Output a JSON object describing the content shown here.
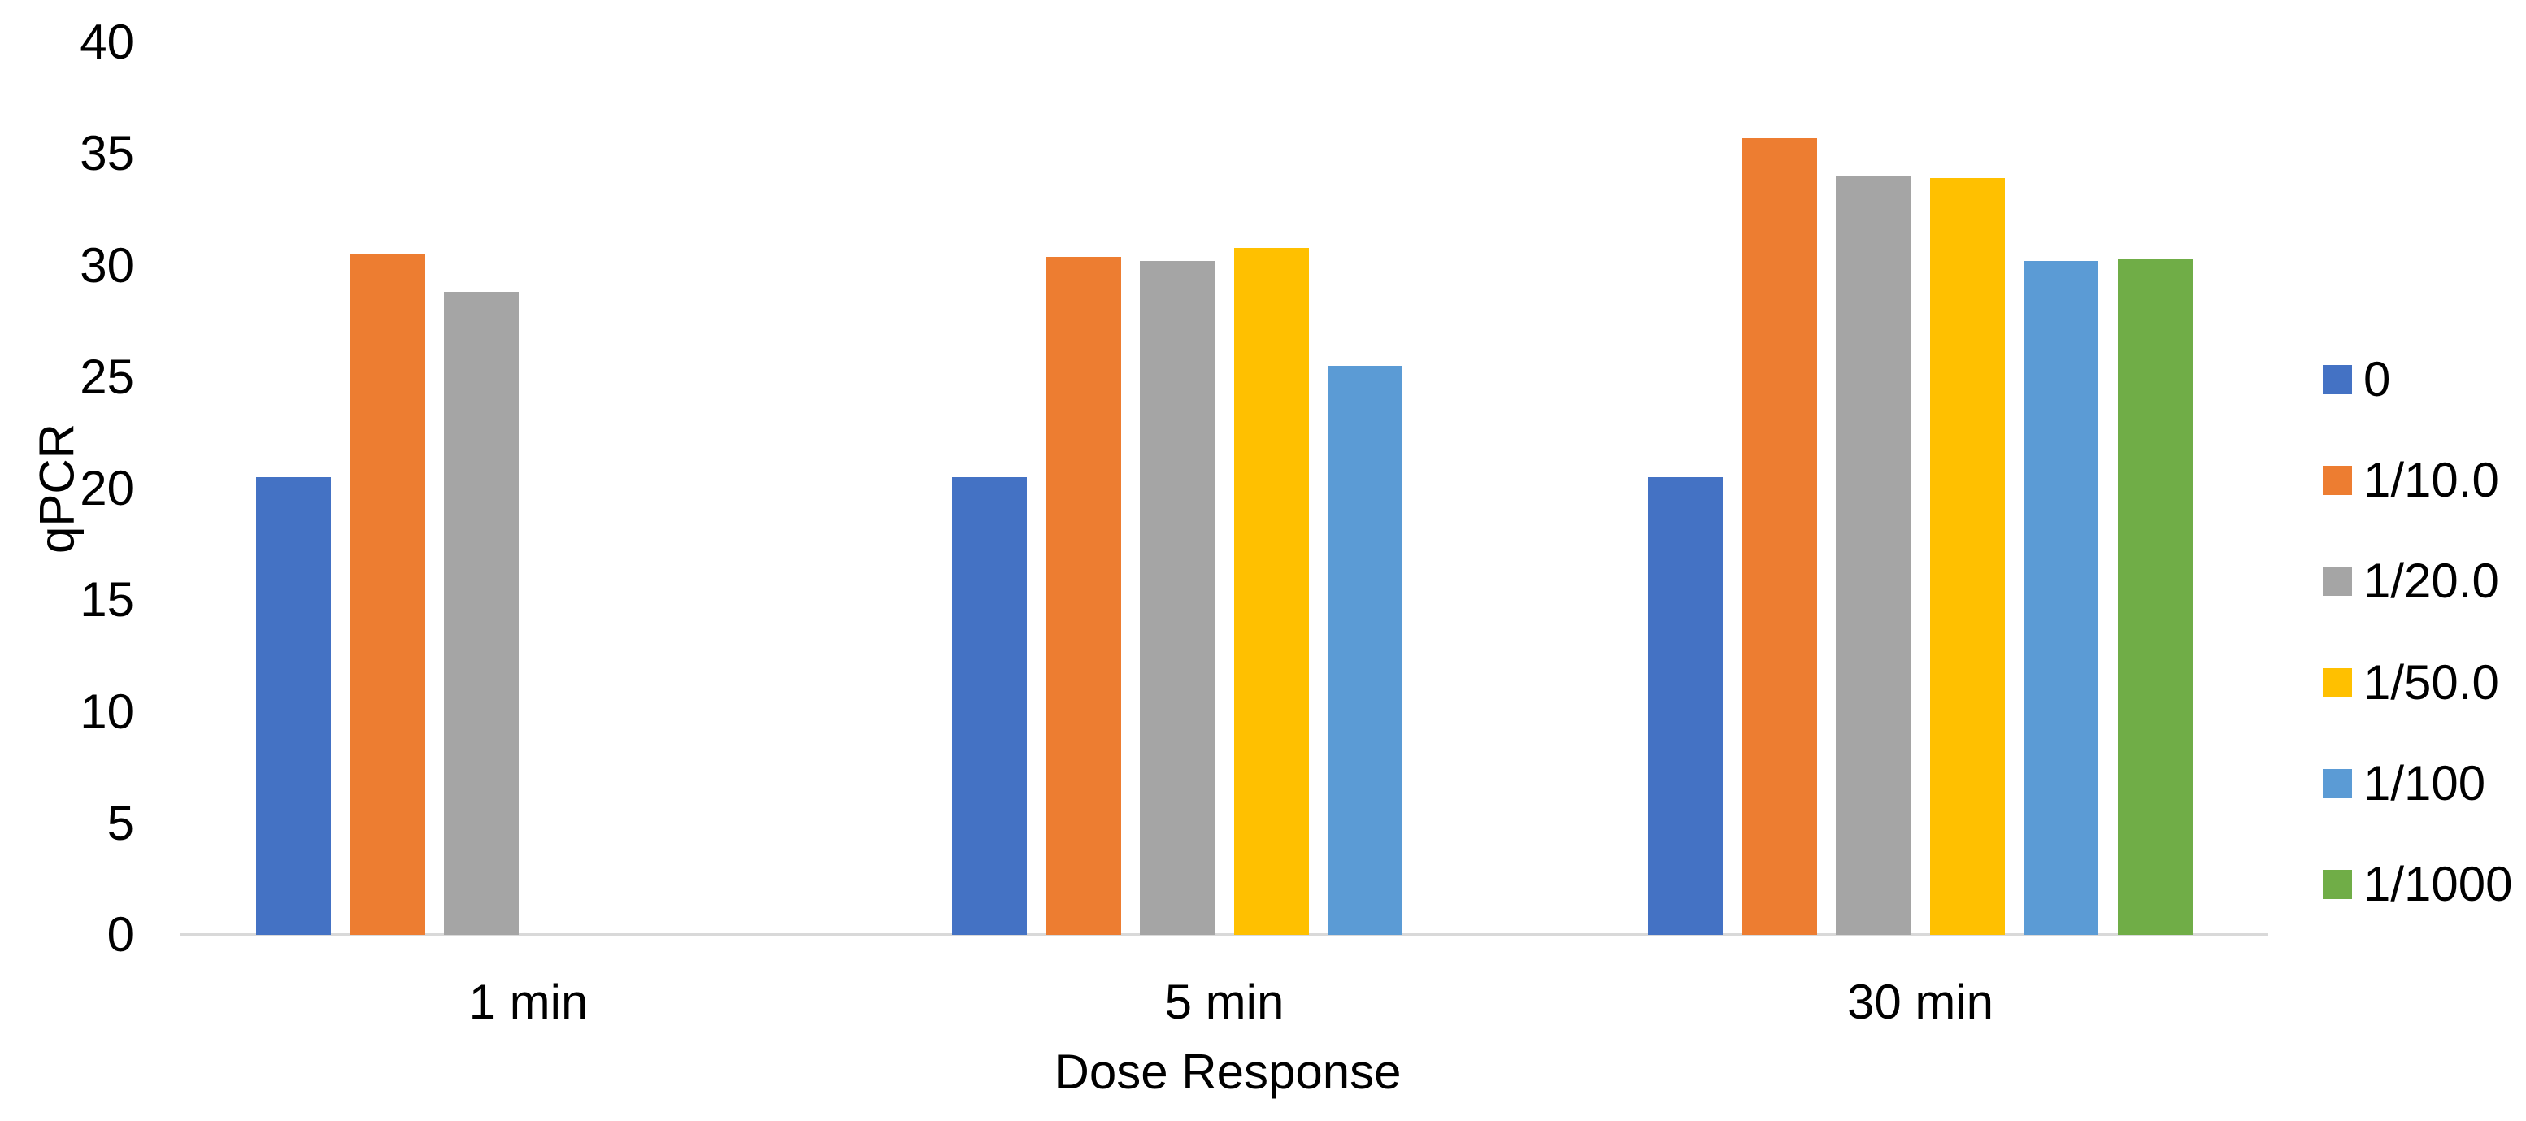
{
  "chart_data": {
    "type": "bar",
    "title": "",
    "xlabel": "Dose Response",
    "ylabel": "qPCR",
    "categories": [
      "1 min",
      "5 min",
      "30 min"
    ],
    "series": [
      {
        "name": "0",
        "color": "#4472C4",
        "values": [
          20.5,
          20.5,
          20.5
        ]
      },
      {
        "name": "1/10.0",
        "color": "#ED7D31",
        "values": [
          30.5,
          30.4,
          35.7
        ]
      },
      {
        "name": "1/20.0",
        "color": "#A5A5A5",
        "values": [
          28.8,
          30.2,
          34.0
        ]
      },
      {
        "name": "1/50.0",
        "color": "#FFC000",
        "values": [
          null,
          30.8,
          33.9
        ]
      },
      {
        "name": "1/100",
        "color": "#5B9BD5",
        "values": [
          null,
          25.5,
          30.2
        ]
      },
      {
        "name": "1/1000",
        "color": "#70AD47",
        "values": [
          null,
          null,
          30.3
        ]
      }
    ],
    "series_values_note": "null = no bar shown for that category",
    "y_axis": {
      "min": 0,
      "max": 40,
      "step": 5
    },
    "grid": false,
    "legend_position": "right",
    "axis_line_color": "#D9D9D9",
    "text_color": "#000000"
  }
}
